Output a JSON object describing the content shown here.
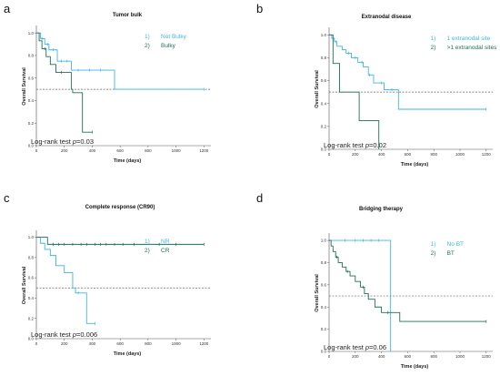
{
  "panels": [
    {
      "letter": "a",
      "title": "Tumor bulk",
      "xlabel": "Time (days)",
      "ylabel": "Overall Survival",
      "note_prefix": "Log-rank test ",
      "note_p": "p",
      "note_suffix": "=0.03",
      "legend": [
        {
          "num": "1)",
          "label": "Not Bulky",
          "color": "#3fb6e3"
        },
        {
          "num": "2)",
          "label": "Bulky",
          "color": "#1f6e5a"
        }
      ]
    },
    {
      "letter": "b",
      "title": "Extranodal disease",
      "xlabel": "Time (days)",
      "ylabel": "Overall Survival",
      "note_prefix": "Log-rank test ",
      "note_p": "p",
      "note_suffix": "=0.02",
      "legend": [
        {
          "num": "1)",
          "label": "1 extranodal site",
          "color": "#3fb6e3"
        },
        {
          "num": "2)",
          "label": ">1 extranodal sites",
          "color": "#1f6e5a"
        }
      ]
    },
    {
      "letter": "c",
      "title": "Complete response (CR90)",
      "xlabel": "Time (days)",
      "ylabel": "Overall Survival",
      "note_prefix": "Log-rank test ",
      "note_p": "p",
      "note_suffix": "=0.006",
      "legend": [
        {
          "num": "1)",
          "label": "NR",
          "color": "#3fb6e3"
        },
        {
          "num": "2)",
          "label": "CR",
          "color": "#1f6e5a"
        }
      ]
    },
    {
      "letter": "d",
      "title": "Bridging therapy",
      "xlabel": "Time (days)",
      "ylabel": "Overall Survival",
      "note_prefix": "Log-rank test ",
      "note_p": "p",
      "note_suffix": "=0.06",
      "legend": [
        {
          "num": "1)",
          "label": "No BT",
          "color": "#3fb6e3"
        },
        {
          "num": "2)",
          "label": "BT",
          "color": "#1f6e5a"
        }
      ]
    }
  ],
  "chart_data": [
    {
      "type": "line",
      "title": "Tumor bulk",
      "xlabel": "Time (days)",
      "ylabel": "Overall Survival",
      "xlim": [
        0,
        1250
      ],
      "ylim": [
        0,
        1.05
      ],
      "x_ticks": [
        0,
        200,
        400,
        600,
        800,
        1000,
        1200
      ],
      "y_ticks": [
        0.0,
        0.2,
        0.4,
        0.6,
        0.8,
        1.0
      ],
      "reference_line": 0.5,
      "series": [
        {
          "color": "#3fb6e3",
          "x": [
            0,
            30,
            60,
            90,
            150,
            250,
            540,
            560,
            1200
          ],
          "y": [
            1.0,
            0.95,
            0.9,
            0.85,
            0.75,
            0.67,
            0.67,
            0.5,
            0.5
          ],
          "censor_x": [
            40,
            80,
            120,
            180,
            220,
            300,
            380,
            460,
            1200
          ]
        },
        {
          "color": "#1f6e5a",
          "x": [
            0,
            20,
            40,
            70,
            100,
            140,
            200,
            250,
            260,
            330,
            400
          ],
          "y": [
            1.0,
            0.93,
            0.86,
            0.79,
            0.72,
            0.65,
            0.65,
            0.5,
            0.47,
            0.12,
            0.12
          ],
          "censor_x": [
            60,
            180,
            400
          ]
        }
      ]
    },
    {
      "type": "line",
      "title": "Extranodal disease",
      "xlabel": "Time (days)",
      "ylabel": "Overall Survival",
      "xlim": [
        0,
        1250
      ],
      "ylim": [
        0,
        1.05
      ],
      "x_ticks": [
        0,
        200,
        400,
        600,
        800,
        1000,
        1200
      ],
      "y_ticks": [
        0.0,
        0.2,
        0.4,
        0.6,
        0.8,
        1.0
      ],
      "reference_line": 0.5,
      "series": [
        {
          "color": "#3fb6e3",
          "x": [
            0,
            20,
            40,
            60,
            100,
            130,
            170,
            220,
            260,
            300,
            340,
            420,
            530,
            1200
          ],
          "y": [
            1.0,
            0.97,
            0.94,
            0.9,
            0.87,
            0.84,
            0.8,
            0.76,
            0.72,
            0.65,
            0.58,
            0.52,
            0.35,
            0.35
          ],
          "censor_x": [
            50,
            150,
            200,
            250,
            310,
            400,
            480,
            1200
          ]
        },
        {
          "color": "#1f6e5a",
          "x": [
            0,
            30,
            80,
            230,
            380
          ],
          "y": [
            1.0,
            0.75,
            0.5,
            0.25,
            0.0
          ],
          "censor_x": []
        }
      ]
    },
    {
      "type": "line",
      "title": "Complete response (CR90)",
      "xlabel": "Time (days)",
      "ylabel": "Overall Survival",
      "xlim": [
        0,
        1250
      ],
      "ylim": [
        0,
        1.05
      ],
      "x_ticks": [
        0,
        200,
        400,
        600,
        800,
        1000,
        1200
      ],
      "y_ticks": [
        0.0,
        0.2,
        0.4,
        0.6,
        0.8,
        1.0
      ],
      "reference_line": 0.5,
      "series": [
        {
          "color": "#3fb6e3",
          "x": [
            0,
            30,
            60,
            100,
            140,
            200,
            260,
            280,
            360,
            420
          ],
          "y": [
            1.0,
            0.94,
            0.88,
            0.82,
            0.72,
            0.65,
            0.5,
            0.45,
            0.15,
            0.15
          ],
          "censor_x": [
            300,
            420
          ]
        },
        {
          "color": "#1f6e5a",
          "x": [
            0,
            80,
            1200
          ],
          "y": [
            1.0,
            0.93,
            0.93
          ],
          "censor_x": [
            120,
            160,
            200,
            260,
            320,
            360,
            420,
            460,
            500,
            560,
            620,
            700,
            880,
            1000,
            1200
          ]
        }
      ]
    },
    {
      "type": "line",
      "title": "Bridging therapy",
      "xlabel": "Time (days)",
      "ylabel": "Overall Survival",
      "xlim": [
        0,
        1250
      ],
      "ylim": [
        0,
        1.05
      ],
      "x_ticks": [
        0,
        200,
        400,
        600,
        800,
        1000,
        1200
      ],
      "y_ticks": [
        0.0,
        0.2,
        0.4,
        0.6,
        0.8,
        1.0
      ],
      "reference_line": 0.5,
      "series": [
        {
          "color": "#3fb6e3",
          "x": [
            0,
            470,
            470
          ],
          "y": [
            1.0,
            1.0,
            0.0
          ],
          "censor_x": [
            120,
            200,
            260,
            320,
            380
          ]
        },
        {
          "color": "#1f6e5a",
          "x": [
            0,
            15,
            30,
            50,
            70,
            100,
            130,
            160,
            200,
            240,
            270,
            300,
            350,
            400,
            500,
            540,
            1200
          ],
          "y": [
            1.0,
            0.95,
            0.9,
            0.85,
            0.8,
            0.76,
            0.72,
            0.68,
            0.63,
            0.58,
            0.52,
            0.47,
            0.4,
            0.35,
            0.35,
            0.27,
            0.27
          ],
          "censor_x": [
            60,
            140,
            260,
            450,
            1200
          ]
        }
      ]
    }
  ]
}
